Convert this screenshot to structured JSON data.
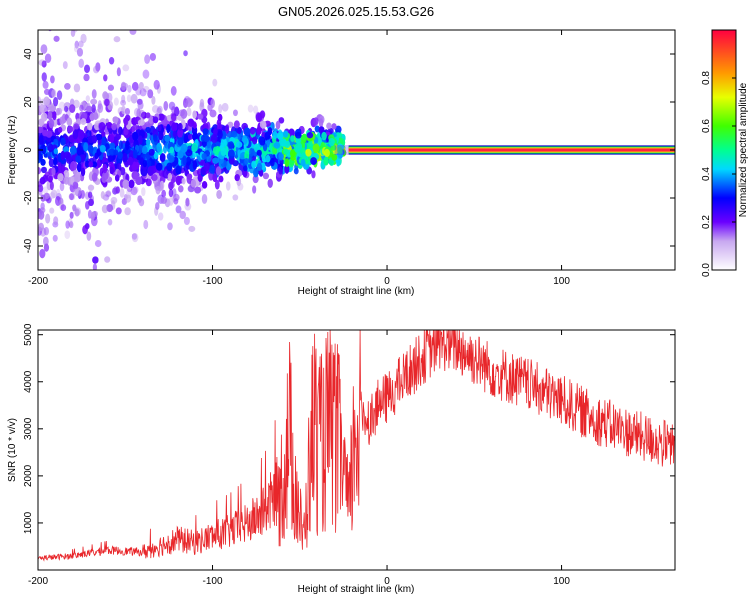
{
  "title": "GN05.2026.025.15.53.G26",
  "chart_data": [
    {
      "type": "heatmap",
      "xlabel": "Height of straight line (km)",
      "ylabel": "Frequency (Hz)",
      "xlim": [
        -200,
        165
      ],
      "ylim": [
        -50,
        50
      ],
      "x_ticks": [
        "-200",
        "-100",
        "0",
        "100"
      ],
      "y_ticks": [
        "-40",
        "-20",
        "0",
        "20",
        "40"
      ],
      "colorbar": {
        "label": "Normalized spectral amplitude",
        "range": [
          0,
          1
        ],
        "ticks": [
          "0.0",
          "0.2",
          "0.4",
          "0.6",
          "0.8"
        ]
      },
      "features": {
        "carrier_frequency_hz": 0,
        "carrier_start_km": -30,
        "noise_spread_hz_at_minus200km": 50,
        "noise_spread_hz_at_minus50km": 10
      }
    },
    {
      "type": "line",
      "color": "#e8262a",
      "xlabel": "Height of straight line (km)",
      "ylabel": "SNR (10 * v/v)",
      "xlim": [
        -200,
        165
      ],
      "ylim": [
        0,
        5100
      ],
      "x_ticks": [
        "-200",
        "-100",
        "0",
        "100"
      ],
      "y_ticks": [
        "1000",
        "2000",
        "3000",
        "4000",
        "5000"
      ],
      "series": [
        {
          "name": "SNR",
          "x": [
            -200,
            -180,
            -160,
            -140,
            -130,
            -120,
            -110,
            -100,
            -90,
            -80,
            -70,
            -60,
            -56,
            -52,
            -48,
            -42,
            -38,
            -34,
            -30,
            -26,
            -22,
            -18,
            -14,
            -10,
            -5,
            0,
            10,
            20,
            30,
            40,
            50,
            60,
            80,
            100,
            120,
            140,
            165
          ],
          "values": [
            250,
            300,
            420,
            380,
            520,
            650,
            580,
            720,
            820,
            980,
            1250,
            1850,
            2900,
            1700,
            600,
            3200,
            2600,
            3000,
            2900,
            2500,
            1200,
            3100,
            3300,
            3200,
            3500,
            3650,
            4100,
            4500,
            4850,
            4750,
            4500,
            4250,
            3950,
            3600,
            3200,
            2900,
            2600
          ]
        }
      ]
    }
  ]
}
